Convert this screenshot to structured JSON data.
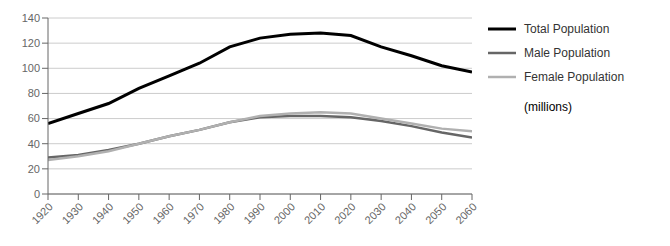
{
  "chart_data": {
    "type": "line",
    "x": [
      1920,
      1930,
      1940,
      1950,
      1960,
      1970,
      1980,
      1990,
      2000,
      2010,
      2020,
      2030,
      2040,
      2050,
      2060
    ],
    "series": [
      {
        "name": "Total Population",
        "color": "#000000",
        "values": [
          56,
          64,
          72,
          84,
          94,
          104,
          117,
          124,
          127,
          128,
          126,
          117,
          110,
          102,
          97
        ]
      },
      {
        "name": "Male Population",
        "color": "#666666",
        "values": [
          29,
          31,
          35,
          40,
          46,
          51,
          57,
          61,
          62,
          62,
          61,
          58,
          54,
          49,
          45
        ]
      },
      {
        "name": "Female Population",
        "color": "#b0b0b0",
        "values": [
          27,
          30,
          34,
          40,
          46,
          51,
          57,
          62,
          64,
          65,
          64,
          60,
          56,
          52,
          50
        ]
      }
    ],
    "xlim": [
      1920,
      2060
    ],
    "xticks": [
      1920,
      1930,
      1940,
      1950,
      1960,
      1970,
      1980,
      1990,
      2000,
      2010,
      2020,
      2030,
      2040,
      2050,
      2060
    ],
    "ylim": [
      0,
      140
    ],
    "yticks": [
      0,
      20,
      40,
      60,
      80,
      100,
      120,
      140
    ],
    "grid": "y",
    "legend": "right",
    "annotation": "(millions)"
  }
}
